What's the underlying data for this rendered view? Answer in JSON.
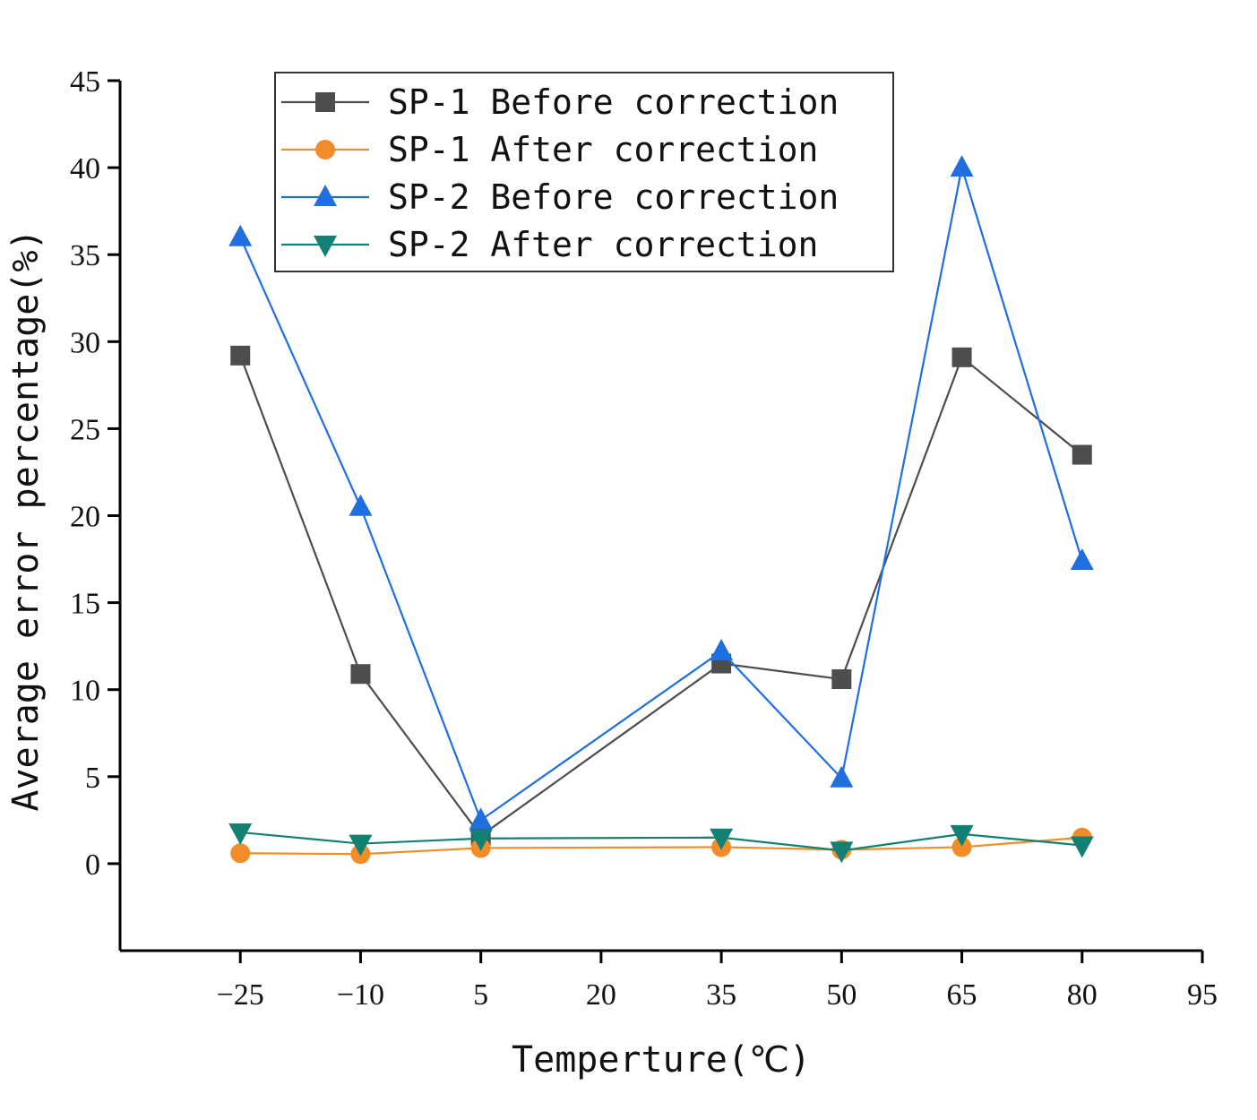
{
  "chart_data": {
    "type": "line",
    "title": "",
    "xlabel": "Temperture(℃)",
    "ylabel": "Average error percentage(%)",
    "xlim": [
      -40,
      95
    ],
    "ylim": [
      -5,
      45
    ],
    "xticks": [
      -25,
      -10,
      5,
      20,
      35,
      50,
      65,
      80,
      95
    ],
    "yticks": [
      0,
      5,
      10,
      15,
      20,
      25,
      30,
      35,
      40,
      45
    ],
    "x": [
      -25,
      -10,
      5,
      35,
      50,
      65,
      80
    ],
    "grid": false,
    "legend_position": "top-left",
    "series": [
      {
        "name": "SP-1 Before correction",
        "marker": "square",
        "color": "#4d4d4d",
        "values": [
          29.2,
          10.9,
          1.6,
          11.5,
          10.6,
          29.1,
          23.5
        ]
      },
      {
        "name": "SP-1 After correction",
        "marker": "circle",
        "color": "#f28c28",
        "values": [
          0.6,
          0.55,
          0.9,
          0.95,
          0.8,
          0.95,
          1.5
        ]
      },
      {
        "name": "SP-2 Before correction",
        "marker": "triangle-up",
        "color": "#1f6fe0",
        "values": [
          36.0,
          20.5,
          2.5,
          12.2,
          4.9,
          40.0,
          17.4
        ]
      },
      {
        "name": "SP-2 After correction",
        "marker": "triangle-down",
        "color": "#138074",
        "values": [
          1.8,
          1.15,
          1.45,
          1.5,
          0.75,
          1.7,
          1.05
        ]
      }
    ]
  }
}
